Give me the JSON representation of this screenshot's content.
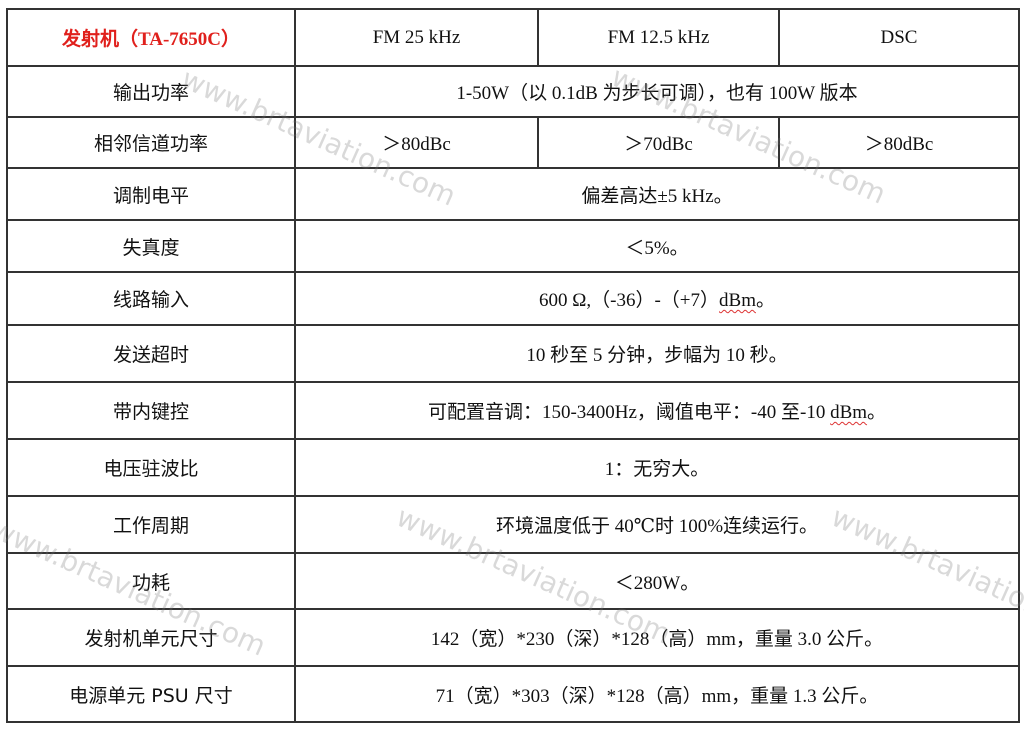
{
  "header": {
    "title": "发射机（TA-7650C）",
    "col1": "FM 25 kHz",
    "col2": "FM 12.5 kHz",
    "col3": "DSC"
  },
  "rows": [
    {
      "label": "输出功率",
      "value": "1-50W（以 0.1dB 为步长可调），也有 100W 版本"
    },
    {
      "label": "相邻信道功率",
      "v1": "＞80dBc",
      "v2": "＞70dBc",
      "v3": "＞80dBc"
    },
    {
      "label": "调制电平",
      "value": "偏差高达±5 kHz。"
    },
    {
      "label": "失真度",
      "value": "＜5%。"
    },
    {
      "label": "线路输入",
      "value_pre": "600 Ω,（-36）-（+7）",
      "value_unit": "dBm",
      "value_post": "。"
    },
    {
      "label": "发送超时",
      "value": "10 秒至 5 分钟，步幅为 10 秒。"
    },
    {
      "label": "带内键控",
      "value_pre": "可配置音调：150-3400Hz，阈值电平：-40 至-10 ",
      "value_unit": "dBm",
      "value_post": "。"
    },
    {
      "label": "电压驻波比",
      "value": "1：无穷大。"
    },
    {
      "label": "工作周期",
      "value": "环境温度低于 40℃时 100%连续运行。"
    },
    {
      "label": "功耗",
      "value": "＜280W。"
    },
    {
      "label": "发射机单元尺寸",
      "value": "142（宽）*230（深）*128（高）mm，重量 3.0 公斤。"
    },
    {
      "label": "电源单元 PSU 尺寸",
      "value": "71（宽）*303（深）*128（高）mm，重量 1.3 公斤。"
    }
  ],
  "watermark": "www.brtaviation.com"
}
